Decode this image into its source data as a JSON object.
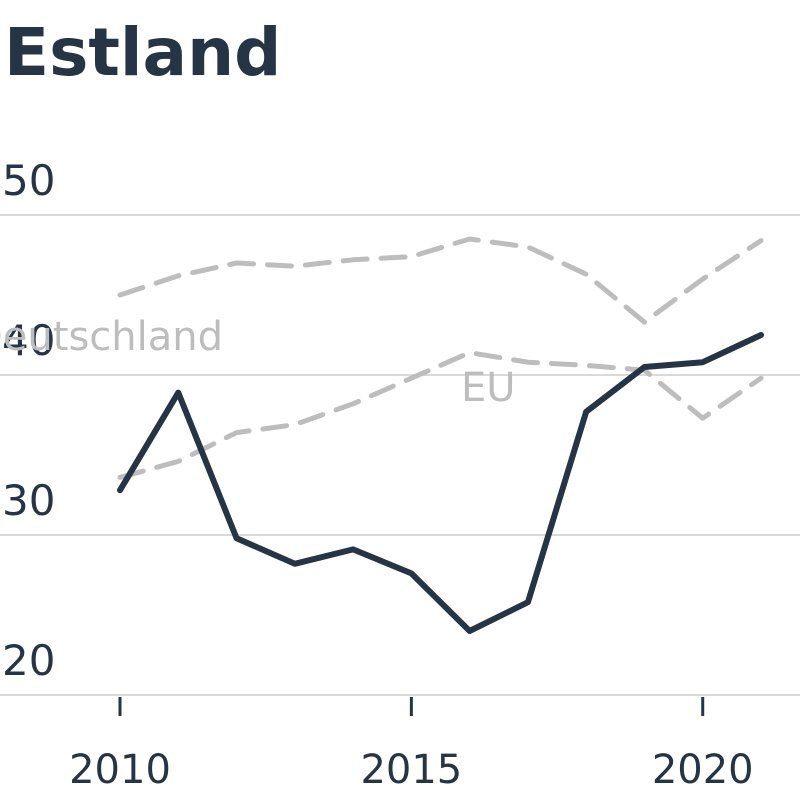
{
  "chart_data": {
    "type": "line",
    "title": "Estland",
    "xlabel": "",
    "ylabel": "",
    "ylim": [
      20,
      50
    ],
    "xlim": [
      2010,
      2021
    ],
    "yticks": [
      20,
      30,
      40,
      50
    ],
    "xticks": [
      2010,
      2015,
      2020
    ],
    "grid": true,
    "x": [
      2010,
      2011,
      2012,
      2013,
      2014,
      2015,
      2016,
      2017,
      2018,
      2019,
      2020,
      2021
    ],
    "series": [
      {
        "name": "",
        "role": "main",
        "color": "#263545",
        "style": "solid",
        "values": [
          32.8,
          38.9,
          29.8,
          28.2,
          29.1,
          27.6,
          24.0,
          25.8,
          37.7,
          40.5,
          40.8,
          42.5
        ]
      },
      {
        "name": "Deutschland",
        "role": "comparison",
        "color": "#bdbdbd",
        "style": "dashed",
        "values": [
          45.0,
          46.2,
          47.0,
          46.8,
          47.2,
          47.4,
          48.5,
          48.0,
          46.3,
          43.3,
          46.0,
          48.4
        ]
      },
      {
        "name": "EU",
        "role": "comparison",
        "color": "#bdbdbd",
        "style": "dashed",
        "values": [
          33.6,
          34.6,
          36.4,
          36.9,
          38.2,
          39.8,
          41.4,
          40.8,
          40.6,
          40.3,
          37.3,
          39.8
        ]
      }
    ]
  }
}
